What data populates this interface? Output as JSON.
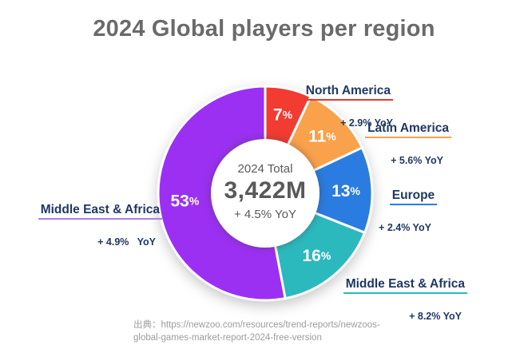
{
  "title": "2024 Global players per region",
  "chart_data": {
    "type": "pie",
    "donut": true,
    "start_angle_deg": 0,
    "direction": "clockwise",
    "title": "2024 Global players per region",
    "legend_position": "callouts",
    "center": {
      "label": "2024 Total",
      "value": "3,422M",
      "yoy": "+ 4.5% YoY"
    },
    "segments": [
      {
        "name": "North America",
        "value_pct": 7,
        "yoy": "+ 2.9% YoY",
        "color": "#F23B31",
        "underline_color": "#E8392E"
      },
      {
        "name": "Latin America",
        "value_pct": 11,
        "yoy": "+ 5.6% YoY",
        "color": "#F9A14B",
        "underline_color": "#F9A14B"
      },
      {
        "name": "Europe",
        "value_pct": 13,
        "yoy": "+ 2.4% YoY",
        "color": "#2A7CE0",
        "underline_color": "#2A7CE0"
      },
      {
        "name": "Middle East & Africa",
        "value_pct": 16,
        "yoy": "+ 8.2% YoY",
        "color": "#2BB9BE",
        "underline_color": "#2BB9BE"
      },
      {
        "name": "Middle East & Africa",
        "value_pct": 53,
        "yoy": "+ 4.9%   YoY",
        "color": "#9B30F2",
        "underline_color": "#AE7DE2"
      }
    ]
  },
  "source": {
    "line1": "出典：https://newzoo.com/resources/trend-reports/newzoos-",
    "line2": "global-games-market-report-2024-free-version"
  },
  "colors": {
    "label_navy": "#1F3864",
    "title_gray": "#6A6A6A",
    "center_gray": "#595959",
    "source_gray": "#9C9C9C"
  }
}
